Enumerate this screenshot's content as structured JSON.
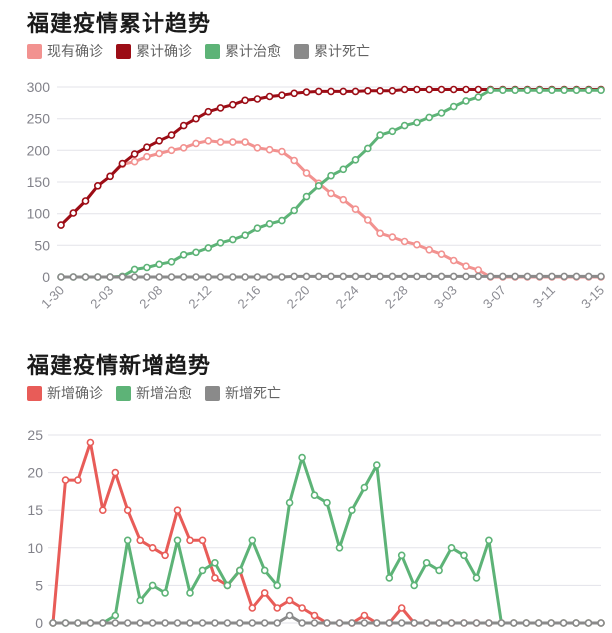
{
  "page": {
    "background": "#ffffff"
  },
  "chart_data": [
    {
      "type": "line",
      "title": "福建疫情累计趋势",
      "legend_position": "top-left",
      "grid": true,
      "ylim": [
        0,
        300
      ],
      "y_ticks": [
        0,
        50,
        100,
        150,
        200,
        250,
        300
      ],
      "x": [
        "1-30",
        "1-31",
        "2-01",
        "2-02",
        "2-03",
        "2-05",
        "2-06",
        "2-07",
        "2-08",
        "2-09",
        "2-10",
        "2-11",
        "2-12",
        "2-13",
        "2-14",
        "2-15",
        "2-16",
        "2-17",
        "2-18",
        "2-19",
        "2-20",
        "2-21",
        "2-22",
        "2-23",
        "2-24",
        "2-25",
        "2-26",
        "2-27",
        "2-28",
        "2-29",
        "3-01",
        "3-02",
        "3-03",
        "3-04",
        "3-05",
        "3-06",
        "3-07",
        "3-08",
        "3-09",
        "3-10",
        "3-11",
        "3-12",
        "3-13",
        "3-14",
        "3-15"
      ],
      "x_tick_indices": [
        0,
        4,
        8,
        12,
        16,
        20,
        24,
        28,
        32,
        36,
        40,
        44
      ],
      "x_tick_labels": [
        "1-30",
        "2-03",
        "2-08",
        "2-12",
        "2-16",
        "2-20",
        "2-24",
        "2-28",
        "3-03",
        "3-07",
        "3-11",
        "3-15"
      ],
      "series": [
        {
          "id": "existing-confirmed",
          "name": "现有确诊",
          "color": "#f29290",
          "values": [
            82,
            101,
            120,
            144,
            159,
            178,
            182,
            190,
            195,
            200,
            204,
            211,
            215,
            213,
            213,
            213,
            204,
            201,
            198,
            184,
            164,
            148,
            132,
            122,
            107,
            90,
            69,
            63,
            56,
            51,
            43,
            36,
            26,
            17,
            11,
            0,
            0,
            0,
            0,
            0,
            0,
            0,
            0,
            0,
            0
          ]
        },
        {
          "id": "cumulative-confirmed",
          "name": "累计确诊",
          "color": "#9c0d16",
          "values": [
            82,
            101,
            120,
            144,
            159,
            179,
            194,
            205,
            215,
            224,
            239,
            250,
            261,
            267,
            272,
            279,
            281,
            285,
            287,
            290,
            292,
            293,
            293,
            293,
            293,
            294,
            294,
            294,
            296,
            296,
            296,
            296,
            296,
            296,
            296,
            296,
            296,
            296,
            296,
            296,
            296,
            296,
            296,
            296,
            296
          ]
        },
        {
          "id": "cumulative-cured",
          "name": "累计治愈",
          "color": "#5db377",
          "values": [
            0,
            0,
            0,
            0,
            0,
            1,
            12,
            15,
            20,
            24,
            35,
            39,
            46,
            54,
            59,
            66,
            77,
            84,
            89,
            105,
            127,
            144,
            160,
            170,
            185,
            203,
            224,
            230,
            239,
            244,
            252,
            259,
            269,
            278,
            284,
            295,
            295,
            295,
            295,
            295,
            295,
            295,
            295,
            295,
            295
          ]
        },
        {
          "id": "cumulative-deaths",
          "name": "累计死亡",
          "color": "#8a8a8a",
          "values": [
            0,
            0,
            0,
            0,
            0,
            0,
            0,
            0,
            0,
            0,
            0,
            0,
            0,
            0,
            0,
            0,
            0,
            0,
            0,
            1,
            1,
            1,
            1,
            1,
            1,
            1,
            1,
            1,
            1,
            1,
            1,
            1,
            1,
            1,
            1,
            1,
            1,
            1,
            1,
            1,
            1,
            1,
            1,
            1,
            1
          ]
        }
      ]
    },
    {
      "type": "line",
      "title": "福建疫情新增趋势",
      "legend_position": "top-left",
      "grid": true,
      "ylim": [
        0,
        25
      ],
      "y_ticks": [
        0,
        5,
        10,
        15,
        20,
        25
      ],
      "x": [
        "1-30",
        "1-31",
        "2-01",
        "2-02",
        "2-03",
        "2-05",
        "2-06",
        "2-07",
        "2-08",
        "2-09",
        "2-10",
        "2-11",
        "2-12",
        "2-13",
        "2-14",
        "2-15",
        "2-16",
        "2-17",
        "2-18",
        "2-19",
        "2-20",
        "2-21",
        "2-22",
        "2-23",
        "2-24",
        "2-25",
        "2-26",
        "2-27",
        "2-28",
        "2-29",
        "3-01",
        "3-02",
        "3-03",
        "3-04",
        "3-05",
        "3-06",
        "3-07",
        "3-08",
        "3-09",
        "3-10",
        "3-11",
        "3-12",
        "3-13",
        "3-14",
        "3-15"
      ],
      "x_tick_indices": [],
      "x_tick_labels": [],
      "series": [
        {
          "id": "new-confirmed",
          "name": "新增确诊",
          "color": "#e85c58",
          "values": [
            0,
            19,
            19,
            24,
            15,
            20,
            15,
            11,
            10,
            9,
            15,
            11,
            11,
            6,
            5,
            7,
            2,
            4,
            2,
            3,
            2,
            1,
            0,
            0,
            0,
            1,
            0,
            0,
            2,
            0,
            0,
            0,
            0,
            0,
            0,
            0,
            0,
            0,
            0,
            0,
            0,
            0,
            0,
            0,
            0
          ]
        },
        {
          "id": "new-cured",
          "name": "新增治愈",
          "color": "#5db377",
          "values": [
            0,
            0,
            0,
            0,
            0,
            1,
            11,
            3,
            5,
            4,
            11,
            4,
            7,
            8,
            5,
            7,
            11,
            7,
            5,
            16,
            22,
            17,
            16,
            10,
            15,
            18,
            21,
            6,
            9,
            5,
            8,
            7,
            10,
            9,
            6,
            11,
            0,
            0,
            0,
            0,
            0,
            0,
            0,
            0,
            0
          ]
        },
        {
          "id": "new-deaths",
          "name": "新增死亡",
          "color": "#8a8a8a",
          "values": [
            0,
            0,
            0,
            0,
            0,
            0,
            0,
            0,
            0,
            0,
            0,
            0,
            0,
            0,
            0,
            0,
            0,
            0,
            0,
            1,
            0,
            0,
            0,
            0,
            0,
            0,
            0,
            0,
            0,
            0,
            0,
            0,
            0,
            0,
            0,
            0,
            0,
            0,
            0,
            0,
            0,
            0,
            0,
            0,
            0
          ]
        }
      ]
    }
  ]
}
